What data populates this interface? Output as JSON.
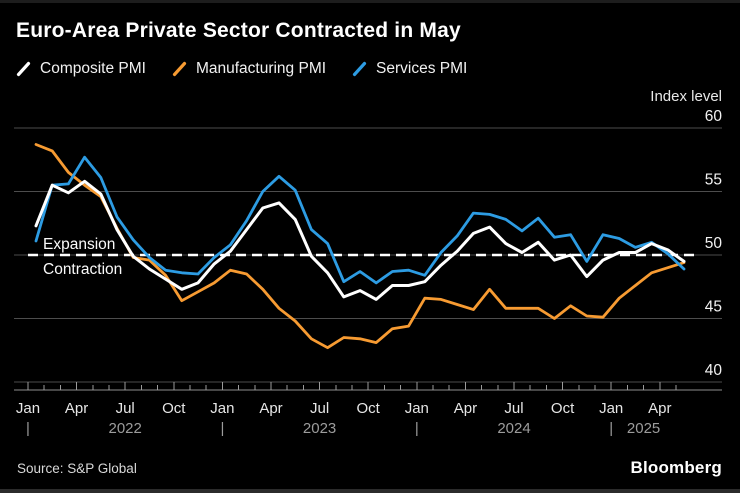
{
  "header": {
    "title": "Euro-Area Private Sector Contracted in May"
  },
  "chart_data": {
    "type": "line",
    "title": "Euro-Area Private Sector Contracted in May",
    "ylabel": "Index level",
    "ylim": [
      40,
      60
    ],
    "yticks": [
      60,
      55,
      50,
      45,
      40
    ],
    "grid": true,
    "legend_position": "top",
    "x_axis": {
      "month_cycle": [
        "Jan",
        "Apr",
        "Jul",
        "Oct"
      ],
      "years": [
        "2022",
        "2023",
        "2024",
        "2025"
      ],
      "year_separator": "|",
      "start": "Jan 2022",
      "end": "May 2025"
    },
    "threshold": {
      "value": 50,
      "above_label": "Expansion",
      "below_label": "Contraction"
    },
    "series": [
      {
        "name": "Composite PMI",
        "color": "#ffffff",
        "values": [
          52.3,
          55.5,
          54.9,
          55.8,
          54.8,
          52.0,
          49.9,
          48.9,
          48.1,
          47.3,
          47.8,
          49.3,
          50.3,
          52.0,
          53.7,
          54.1,
          52.8,
          49.9,
          48.6,
          46.7,
          47.2,
          46.5,
          47.6,
          47.6,
          47.9,
          49.2,
          50.3,
          51.7,
          52.2,
          50.9,
          50.2,
          51.0,
          49.6,
          50.0,
          48.3,
          49.6,
          50.2,
          50.2,
          50.9,
          50.4,
          49.5
        ]
      },
      {
        "name": "Manufacturing PMI",
        "color": "#f79b32",
        "values": [
          58.7,
          58.2,
          56.5,
          55.5,
          54.6,
          52.1,
          49.8,
          49.6,
          48.4,
          46.4,
          47.1,
          47.8,
          48.8,
          48.5,
          47.3,
          45.8,
          44.8,
          43.4,
          42.7,
          43.5,
          43.4,
          43.1,
          44.2,
          44.4,
          46.6,
          46.5,
          46.1,
          45.7,
          47.3,
          45.8,
          45.8,
          45.8,
          45.0,
          46.0,
          45.2,
          45.1,
          46.6,
          47.6,
          48.6,
          49.0,
          49.4
        ]
      },
      {
        "name": "Services PMI",
        "color": "#2d9ce3",
        "values": [
          51.1,
          55.5,
          55.6,
          57.7,
          56.1,
          53.0,
          51.2,
          49.8,
          48.8,
          48.6,
          48.5,
          49.8,
          50.8,
          52.7,
          55.0,
          56.2,
          55.1,
          52.0,
          50.9,
          47.9,
          48.7,
          47.8,
          48.7,
          48.8,
          48.4,
          50.2,
          51.5,
          53.3,
          53.2,
          52.8,
          51.9,
          52.9,
          51.4,
          51.6,
          49.5,
          51.6,
          51.3,
          50.6,
          51.0,
          50.1,
          48.9
        ]
      }
    ]
  },
  "footer": {
    "source": "Source: S&P Global",
    "brand": "Bloomberg"
  }
}
